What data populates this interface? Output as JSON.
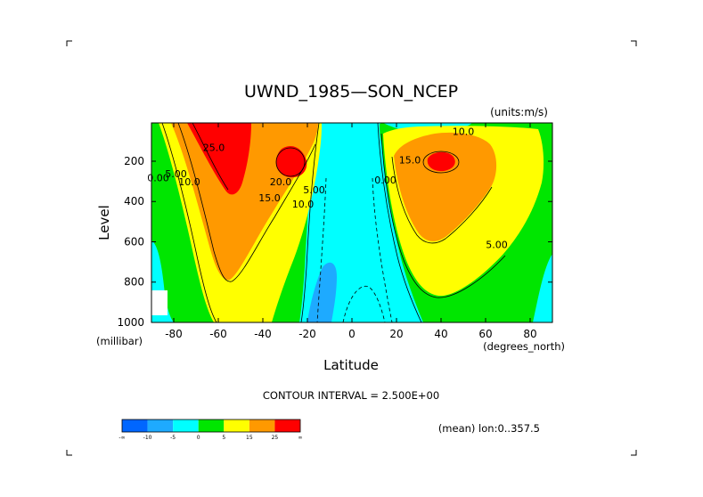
{
  "chart_data": {
    "type": "contour",
    "title": "UWND_1985—SON_NCEP",
    "units_label": "(units:m/s)",
    "xlabel": "Latitude",
    "ylabel": "Level",
    "x_unit_label": "(degrees_north)",
    "y_unit_label": "(millibar)",
    "xlim": [
      -90,
      90
    ],
    "ylim": [
      1000,
      10
    ],
    "x_ticks": [
      -80,
      -60,
      -40,
      -20,
      0,
      20,
      40,
      60,
      80
    ],
    "y_ticks": [
      200,
      400,
      600,
      800,
      1000
    ],
    "contour_interval_text": "CONTOUR INTERVAL = 2.500E+00",
    "mean_text": "(mean) lon:0..357.5",
    "contour_labels": [
      {
        "text": "25.0",
        "lat": -62,
        "level": 150
      },
      {
        "text": "20.0",
        "lat": -32,
        "level": 320
      },
      {
        "text": "15.0",
        "lat": -37,
        "level": 400
      },
      {
        "text": "10.0",
        "lat": -73,
        "level": 320
      },
      {
        "text": "10.0",
        "lat": -22,
        "level": 430
      },
      {
        "text": "5.00",
        "lat": -79,
        "level": 280
      },
      {
        "text": "5.00",
        "lat": -17,
        "level": 360
      },
      {
        "text": "0.00",
        "lat": -87,
        "level": 300
      },
      {
        "text": "0.00",
        "lat": 15,
        "level": 310
      },
      {
        "text": "15.0",
        "lat": 26,
        "level": 210
      },
      {
        "text": "10.0",
        "lat": 50,
        "level": 70
      },
      {
        "text": "5.00",
        "lat": 65,
        "level": 630
      }
    ],
    "colorbar": {
      "colors": [
        "#0066ff",
        "#1eaaff",
        "#00ffff",
        "#00e600",
        "#ffff00",
        "#ff9900",
        "#ff0000"
      ],
      "labels": [
        "-∞",
        "-10",
        "-5",
        "0",
        "5",
        "15",
        "25",
        "∞"
      ]
    }
  }
}
